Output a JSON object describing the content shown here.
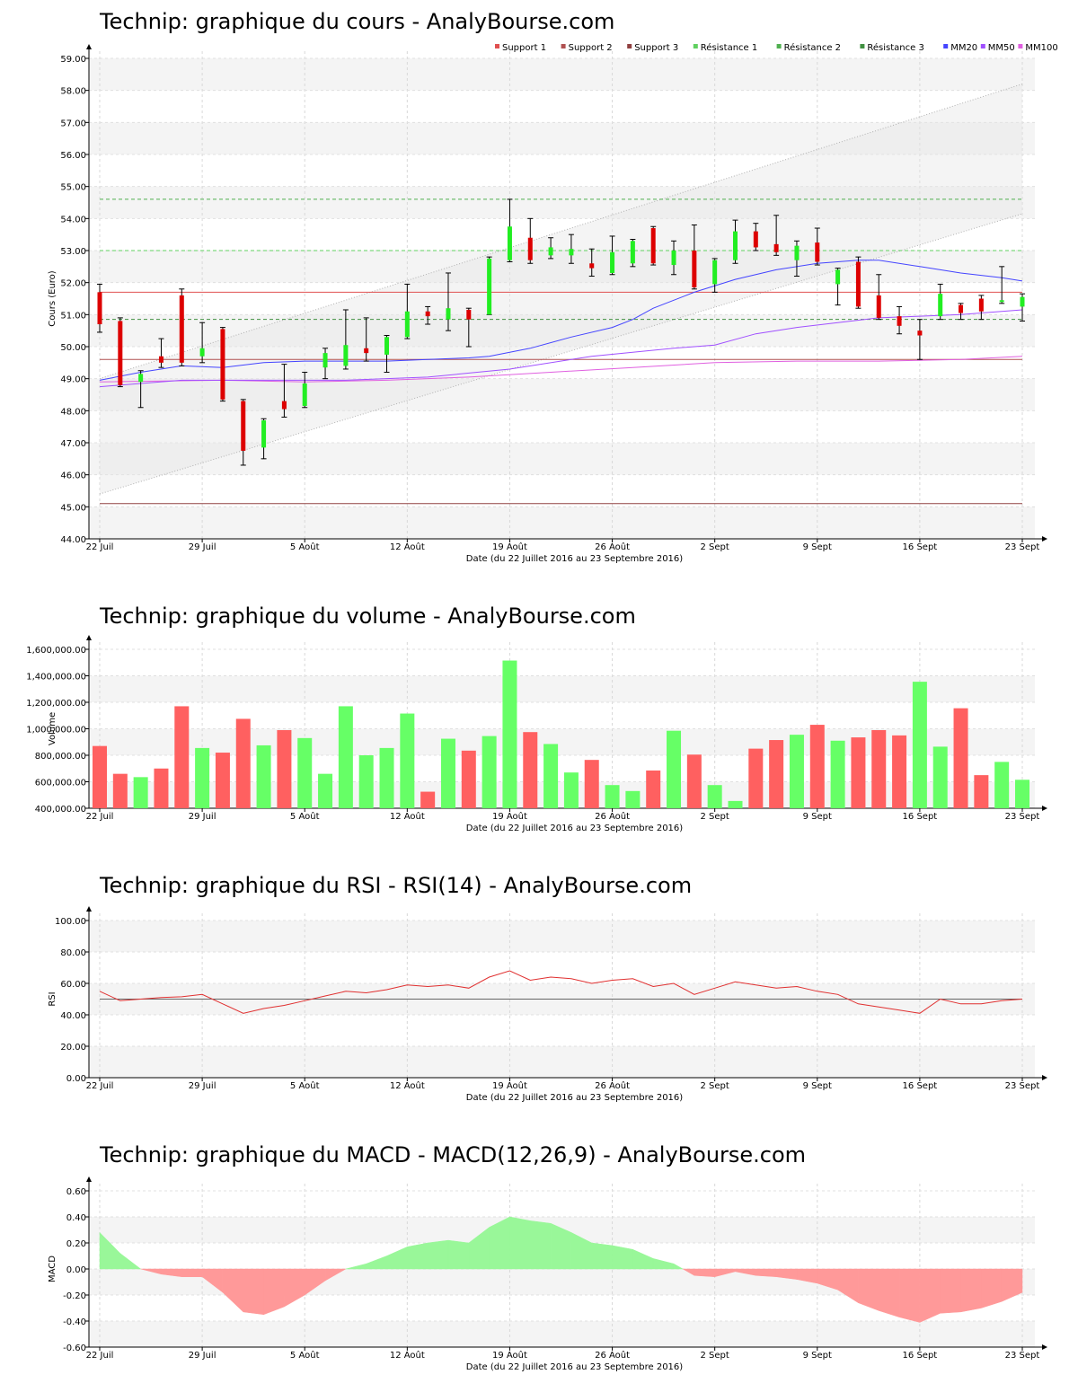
{
  "chart_data": [
    {
      "type": "candlestick",
      "title": "Technip: graphique du cours - AnalyBourse.com",
      "xlabel": "Date (du 22 Juillet 2016 au 23 Septembre 2016)",
      "ylabel": "Cours (Euro)",
      "ylim": [
        44,
        59
      ],
      "yticks": [
        "44.00",
        "45.00",
        "46.00",
        "47.00",
        "48.00",
        "49.00",
        "50.00",
        "51.00",
        "52.00",
        "53.00",
        "54.00",
        "55.00",
        "56.00",
        "57.00",
        "58.00",
        "59.00"
      ],
      "xticks": [
        "22 Juil",
        "29 Juil",
        "5 Août",
        "12 Août",
        "19 Août",
        "26 Août",
        "2 Sept",
        "9 Sept",
        "16 Sept",
        "23 Sept"
      ],
      "legend": [
        "Support 1",
        "Support 2",
        "Support 3",
        "Résistance 1",
        "Résistance 2",
        "Résistance 3",
        "MM20",
        "MM50",
        "MM100"
      ],
      "legend_colors": [
        "#e05050",
        "#b05050",
        "#904040",
        "#60d060",
        "#50b050",
        "#409040",
        "#4444ff",
        "#a050ff",
        "#e060e0"
      ],
      "support": [
        51.7,
        49.6,
        45.1
      ],
      "resistance": [
        53.0,
        50.85,
        54.6
      ],
      "channel_upper": [
        [
          0,
          49.0
        ],
        [
          45,
          58.2
        ]
      ],
      "channel_lower": [
        [
          0,
          45.4
        ],
        [
          45,
          54.15
        ]
      ],
      "candles": [
        {
          "x": 0,
          "open": 51.7,
          "close": 50.7,
          "high": 51.95,
          "low": 50.45
        },
        {
          "x": 1,
          "open": 50.8,
          "close": 48.8,
          "high": 50.9,
          "low": 48.75
        },
        {
          "x": 2,
          "open": 48.9,
          "close": 49.15,
          "high": 49.25,
          "low": 48.1
        },
        {
          "x": 3,
          "open": 49.7,
          "close": 49.5,
          "high": 50.25,
          "low": 49.35
        },
        {
          "x": 4,
          "open": 51.6,
          "close": 49.5,
          "high": 51.8,
          "low": 49.4
        },
        {
          "x": 5,
          "open": 49.7,
          "close": 49.95,
          "high": 50.75,
          "low": 49.5
        },
        {
          "x": 6,
          "open": 50.55,
          "close": 48.35,
          "high": 50.6,
          "low": 48.3
        },
        {
          "x": 7,
          "open": 48.3,
          "close": 46.75,
          "high": 48.35,
          "low": 46.3
        },
        {
          "x": 8,
          "open": 46.85,
          "close": 47.7,
          "high": 47.75,
          "low": 46.5
        },
        {
          "x": 9,
          "open": 48.3,
          "close": 48.05,
          "high": 49.45,
          "low": 47.8
        },
        {
          "x": 10,
          "open": 48.15,
          "close": 48.85,
          "high": 49.2,
          "low": 48.1
        },
        {
          "x": 11,
          "open": 49.35,
          "close": 49.8,
          "high": 49.95,
          "low": 49.0
        },
        {
          "x": 12,
          "open": 49.4,
          "close": 50.05,
          "high": 51.15,
          "low": 49.3
        },
        {
          "x": 13,
          "open": 49.95,
          "close": 49.8,
          "high": 50.9,
          "low": 49.55
        },
        {
          "x": 14,
          "open": 49.75,
          "close": 50.3,
          "high": 50.35,
          "low": 49.2
        },
        {
          "x": 15,
          "open": 50.3,
          "close": 51.1,
          "high": 51.95,
          "low": 50.25
        },
        {
          "x": 16,
          "open": 51.1,
          "close": 50.95,
          "high": 51.25,
          "low": 50.7
        },
        {
          "x": 17,
          "open": 50.85,
          "close": 51.2,
          "high": 52.3,
          "low": 50.5
        },
        {
          "x": 18,
          "open": 51.15,
          "close": 50.85,
          "high": 51.2,
          "low": 50.0
        },
        {
          "x": 19,
          "open": 51.0,
          "close": 52.75,
          "high": 52.8,
          "low": 51.0
        },
        {
          "x": 20,
          "open": 52.7,
          "close": 53.75,
          "high": 54.6,
          "low": 52.65
        },
        {
          "x": 21,
          "open": 53.4,
          "close": 52.7,
          "high": 54.0,
          "low": 52.6
        },
        {
          "x": 22,
          "open": 52.85,
          "close": 53.1,
          "high": 53.4,
          "low": 52.75
        },
        {
          "x": 23,
          "open": 52.85,
          "close": 53.05,
          "high": 53.5,
          "low": 52.6
        },
        {
          "x": 24,
          "open": 52.6,
          "close": 52.45,
          "high": 53.05,
          "low": 52.2
        },
        {
          "x": 25,
          "open": 52.3,
          "close": 52.95,
          "high": 53.45,
          "low": 52.25
        },
        {
          "x": 26,
          "open": 52.6,
          "close": 53.3,
          "high": 53.35,
          "low": 52.5
        },
        {
          "x": 27,
          "open": 53.7,
          "close": 52.6,
          "high": 53.75,
          "low": 52.55
        },
        {
          "x": 28,
          "open": 52.55,
          "close": 53.0,
          "high": 53.3,
          "low": 52.25
        },
        {
          "x": 29,
          "open": 53.0,
          "close": 51.85,
          "high": 53.8,
          "low": 51.8
        },
        {
          "x": 30,
          "open": 51.95,
          "close": 52.7,
          "high": 52.75,
          "low": 51.7
        },
        {
          "x": 31,
          "open": 52.7,
          "close": 53.6,
          "high": 53.95,
          "low": 52.6
        },
        {
          "x": 32,
          "open": 53.6,
          "close": 53.1,
          "high": 53.85,
          "low": 53.0
        },
        {
          "x": 33,
          "open": 53.2,
          "close": 52.95,
          "high": 54.1,
          "low": 52.85
        },
        {
          "x": 34,
          "open": 52.7,
          "close": 53.15,
          "high": 53.3,
          "low": 52.2
        },
        {
          "x": 35,
          "open": 53.25,
          "close": 52.65,
          "high": 53.7,
          "low": 52.55
        },
        {
          "x": 36,
          "open": 51.95,
          "close": 52.4,
          "high": 52.45,
          "low": 51.3
        },
        {
          "x": 37,
          "open": 52.65,
          "close": 51.25,
          "high": 52.8,
          "low": 51.2
        },
        {
          "x": 38,
          "open": 51.6,
          "close": 50.9,
          "high": 52.25,
          "low": 50.85
        },
        {
          "x": 39,
          "open": 50.95,
          "close": 50.65,
          "high": 51.25,
          "low": 50.4
        },
        {
          "x": 40,
          "open": 50.5,
          "close": 50.35,
          "high": 50.85,
          "low": 49.6
        },
        {
          "x": 41,
          "open": 50.95,
          "close": 51.65,
          "high": 51.95,
          "low": 50.85
        },
        {
          "x": 42,
          "open": 51.3,
          "close": 51.05,
          "high": 51.35,
          "low": 50.85
        },
        {
          "x": 43,
          "open": 51.5,
          "close": 51.1,
          "high": 51.6,
          "low": 50.85
        },
        {
          "x": 44,
          "open": 51.45,
          "close": 51.45,
          "high": 52.5,
          "low": 51.35
        },
        {
          "x": 45,
          "open": 51.25,
          "close": 51.55,
          "high": 51.65,
          "low": 50.8
        }
      ],
      "mm20": [
        [
          0,
          48.95
        ],
        [
          2,
          49.2
        ],
        [
          4,
          49.4
        ],
        [
          6,
          49.35
        ],
        [
          8,
          49.5
        ],
        [
          10,
          49.55
        ],
        [
          12,
          49.55
        ],
        [
          14,
          49.55
        ],
        [
          16,
          49.6
        ],
        [
          18,
          49.65
        ],
        [
          19,
          49.7
        ],
        [
          21,
          49.95
        ],
        [
          23,
          50.3
        ],
        [
          25,
          50.6
        ],
        [
          26,
          50.85
        ],
        [
          27,
          51.2
        ],
        [
          29,
          51.7
        ],
        [
          31,
          52.1
        ],
        [
          33,
          52.4
        ],
        [
          35,
          52.6
        ],
        [
          37,
          52.7
        ],
        [
          38,
          52.7
        ],
        [
          40,
          52.5
        ],
        [
          42,
          52.3
        ],
        [
          44,
          52.15
        ],
        [
          45,
          52.05
        ]
      ],
      "mm50": [
        [
          0,
          48.75
        ],
        [
          4,
          48.95
        ],
        [
          8,
          48.95
        ],
        [
          12,
          48.95
        ],
        [
          16,
          49.05
        ],
        [
          20,
          49.3
        ],
        [
          24,
          49.7
        ],
        [
          28,
          49.95
        ],
        [
          30,
          50.05
        ],
        [
          32,
          50.4
        ],
        [
          34,
          50.6
        ],
        [
          36,
          50.75
        ],
        [
          38,
          50.9
        ],
        [
          40,
          50.95
        ],
        [
          42,
          51.0
        ],
        [
          44,
          51.1
        ],
        [
          45,
          51.15
        ]
      ],
      "mm100": [
        [
          0,
          48.9
        ],
        [
          6,
          48.95
        ],
        [
          10,
          48.9
        ],
        [
          14,
          48.95
        ],
        [
          18,
          49.05
        ],
        [
          22,
          49.2
        ],
        [
          26,
          49.35
        ],
        [
          30,
          49.5
        ],
        [
          34,
          49.55
        ],
        [
          38,
          49.55
        ],
        [
          42,
          49.6
        ],
        [
          45,
          49.7
        ]
      ]
    },
    {
      "type": "bar",
      "title": "Technip: graphique du volume - AnalyBourse.com",
      "xlabel": "Date (du 22 Juillet 2016 au 23 Septembre 2016)",
      "ylabel": "Volume",
      "ylim": [
        400000,
        1600000
      ],
      "yticks": [
        "400,000.00",
        "600,000.00",
        "800,000.00",
        "1,000,000.00",
        "1,200,000.00",
        "1,400,000.00",
        "1,600,000.00"
      ],
      "xticks": [
        "22 Juil",
        "29 Juil",
        "5 Août",
        "12 Août",
        "19 Août",
        "26 Août",
        "2 Sept",
        "9 Sept",
        "16 Sept",
        "23 Sept"
      ],
      "values": [
        870000,
        660000,
        635000,
        700000,
        1170000,
        855000,
        820000,
        1075000,
        875000,
        990000,
        930000,
        660000,
        1170000,
        800000,
        855000,
        1115000,
        525000,
        925000,
        835000,
        945000,
        1515000,
        975000,
        885000,
        670000,
        765000,
        575000,
        530000,
        685000,
        985000,
        805000,
        575000,
        455000,
        850000,
        915000,
        955000,
        1030000,
        910000,
        935000,
        990000,
        950000,
        1355000,
        865000,
        1155000,
        650000,
        750000,
        615000
      ],
      "colors": [
        "down",
        "down",
        "up",
        "down",
        "down",
        "up",
        "down",
        "down",
        "up",
        "down",
        "up",
        "up",
        "up",
        "up",
        "up",
        "up",
        "down",
        "up",
        "down",
        "up",
        "up",
        "down",
        "up",
        "up",
        "down",
        "up",
        "up",
        "down",
        "up",
        "down",
        "up",
        "up",
        "down",
        "down",
        "up",
        "down",
        "up",
        "down",
        "down",
        "down",
        "up",
        "up",
        "down",
        "down",
        "up",
        "up"
      ]
    },
    {
      "type": "line",
      "title": "Technip: graphique du RSI - RSI(14) - AnalyBourse.com",
      "xlabel": "Date (du 22 Juillet 2016 au 23 Septembre 2016)",
      "ylabel": "RSI",
      "ylim": [
        0,
        100
      ],
      "yticks": [
        "0.00",
        "20.00",
        "40.00",
        "60.00",
        "80.00",
        "100.00"
      ],
      "xticks": [
        "22 Juil",
        "29 Juil",
        "5 Août",
        "12 Août",
        "19 Août",
        "26 Août",
        "2 Sept",
        "9 Sept",
        "16 Sept",
        "23 Sept"
      ],
      "reference": 50,
      "x": [
        0,
        1,
        2,
        3,
        4,
        5,
        6,
        7,
        8,
        9,
        10,
        11,
        12,
        13,
        14,
        15,
        16,
        17,
        18,
        19,
        20,
        21,
        22,
        23,
        24,
        25,
        26,
        27,
        28,
        29,
        30,
        31,
        32,
        33,
        34,
        35,
        36,
        37,
        38,
        39,
        40,
        41,
        42,
        43,
        44,
        45
      ],
      "values": [
        55,
        49,
        50,
        51,
        51.5,
        53,
        47,
        41,
        44,
        46,
        49,
        52,
        55,
        54,
        56,
        59,
        58,
        59,
        57,
        64,
        68,
        62,
        64,
        63,
        60,
        62,
        63,
        58,
        60,
        53,
        57,
        61,
        59,
        57,
        58,
        55,
        53,
        47,
        45,
        43,
        41,
        50,
        47,
        47,
        49,
        50
      ]
    },
    {
      "type": "area",
      "title": "Technip: graphique du MACD - MACD(12,26,9) - AnalyBourse.com",
      "xlabel": "Date (du 22 Juillet 2016 au 23 Septembre 2016)",
      "ylabel": "MACD",
      "ylim": [
        -0.6,
        0.6
      ],
      "yticks": [
        "-0.60",
        "-0.40",
        "-0.20",
        "0.00",
        "0.20",
        "0.40",
        "0.60"
      ],
      "xticks": [
        "22 Juil",
        "29 Juil",
        "5 Août",
        "12 Août",
        "19 Août",
        "26 Août",
        "2 Sept",
        "9 Sept",
        "16 Sept",
        "23 Sept"
      ],
      "colors": {
        "positive": "#99f799",
        "negative": "#ff9999"
      },
      "x": [
        0,
        1,
        2,
        3,
        4,
        5,
        6,
        7,
        8,
        9,
        10,
        11,
        12,
        13,
        14,
        15,
        16,
        17,
        18,
        19,
        20,
        21,
        22,
        23,
        24,
        25,
        26,
        27,
        28,
        29,
        30,
        31,
        32,
        33,
        34,
        35,
        36,
        37,
        38,
        39,
        40,
        41,
        42,
        43,
        44,
        45
      ],
      "values": [
        0.28,
        0.12,
        0.0,
        -0.04,
        -0.06,
        -0.06,
        -0.18,
        -0.33,
        -0.35,
        -0.29,
        -0.2,
        -0.09,
        0.0,
        0.04,
        0.1,
        0.17,
        0.2,
        0.22,
        0.2,
        0.32,
        0.4,
        0.37,
        0.35,
        0.28,
        0.2,
        0.18,
        0.15,
        0.08,
        0.04,
        -0.05,
        -0.06,
        -0.02,
        -0.05,
        -0.06,
        -0.08,
        -0.11,
        -0.16,
        -0.26,
        -0.32,
        -0.37,
        -0.41,
        -0.34,
        -0.33,
        -0.3,
        -0.25,
        -0.18
      ]
    }
  ]
}
